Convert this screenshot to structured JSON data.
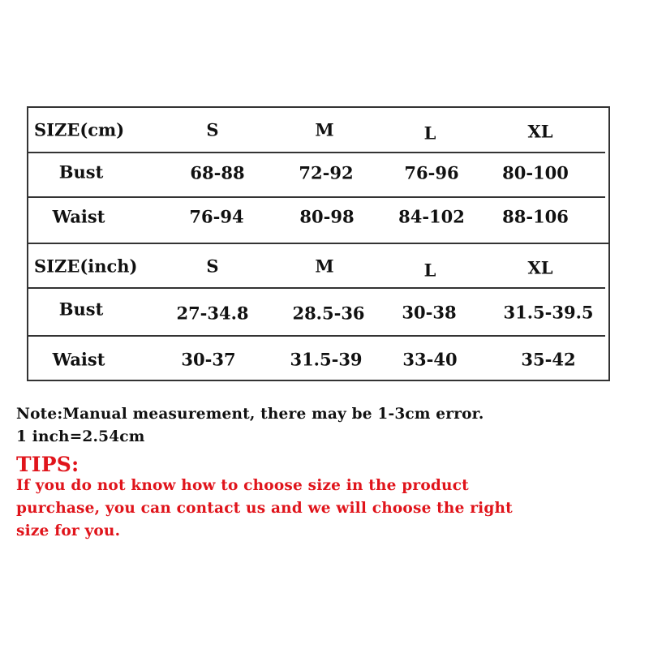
{
  "cm_table": {
    "header": [
      "SIZE(cm)",
      "S",
      "M",
      "L",
      "XL"
    ],
    "rows": [
      {
        "label": "Bust",
        "values": [
          "68-88",
          "72-92",
          "76-96",
          "80-100"
        ]
      },
      {
        "label": "Waist",
        "values": [
          "76-94",
          "80-98",
          "84-102",
          "88-106"
        ]
      }
    ]
  },
  "inch_table": {
    "header": [
      "SIZE(inch)",
      "S",
      "M",
      "L",
      "XL"
    ],
    "rows": [
      {
        "label": "Bust",
        "values": [
          "27-34.8",
          "28.5-36",
          "30-38",
          "31.5-39.5"
        ]
      },
      {
        "label": "Waist",
        "values": [
          "30-37",
          "31.5-39",
          "33-40",
          "35-42"
        ]
      }
    ]
  },
  "note": {
    "line1": "Note:Manual measurement, there may be 1-3cm error.",
    "line2": "1 inch=2.54cm"
  },
  "tips": {
    "title": "TIPS:",
    "lines": [
      "If you do not know how to choose  size in the product",
      "purchase, you can contact us and we will choose the right",
      "size for you."
    ],
    "color": "#e0141b"
  }
}
